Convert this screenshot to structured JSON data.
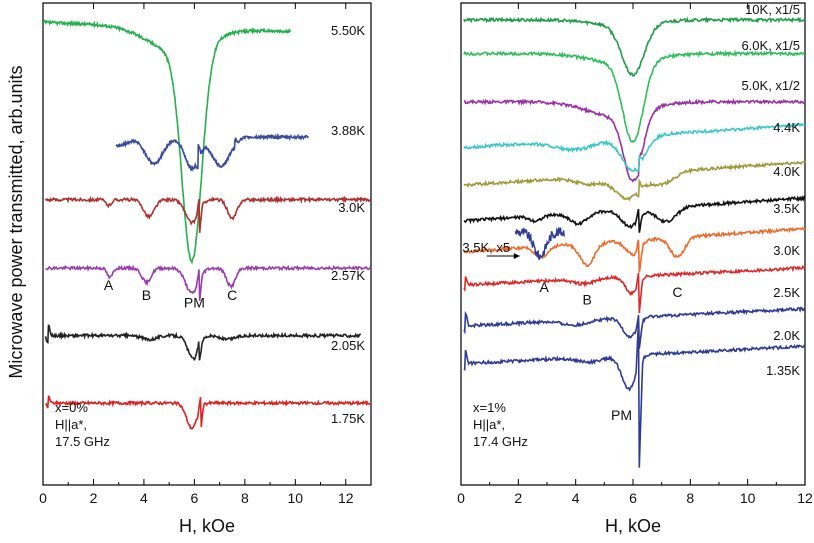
{
  "chart_data": {
    "type": "line",
    "ylabel": "Microwave power transmitted, arb.units",
    "panels": [
      {
        "id": "left",
        "xlabel": "H, kOe",
        "xlim": [
          0,
          13
        ],
        "xticks": [
          0,
          2,
          4,
          6,
          8,
          10,
          12
        ],
        "yaxis_ticks": false,
        "annotation_lines": [
          "x=0%",
          "H||a*,",
          "17.5 GHz"
        ],
        "series": [
          {
            "name": "5.50K",
            "color": "#22b14c",
            "xrange": [
              0.0,
              9.8
            ],
            "baseline": 0.96,
            "slope": -0.002,
            "dips": [
              {
                "x": 5.9,
                "depth": 0.44,
                "width": 0.55
              },
              {
                "x": 5.3,
                "depth": 0.05,
                "width": 1.6
              }
            ]
          },
          {
            "name": "3.88K",
            "color": "#3b4a9e",
            "xrange": [
              2.9,
              10.5
            ],
            "baseline": 0.722,
            "slope": 0.0,
            "dips": [
              {
                "x": 4.4,
                "depth": 0.055,
                "width": 0.5
              },
              {
                "x": 5.9,
                "depth": 0.065,
                "width": 0.4
              },
              {
                "x": 7.05,
                "depth": 0.06,
                "width": 0.5
              },
              {
                "x": 3.0,
                "depth": 0.018,
                "width": 0.5
              }
            ],
            "spikes": [
              {
                "x": 6.15,
                "amp": 0.03
              },
              {
                "x": 7.6,
                "amp": 0.012
              }
            ]
          },
          {
            "name": "3.0K",
            "color": "#b03030",
            "xrange": [
              0.1,
              13.0
            ],
            "baseline": 0.592,
            "slope": 0.0,
            "dips": [
              {
                "x": 2.6,
                "depth": 0.012,
                "width": 0.15
              },
              {
                "x": 4.2,
                "depth": 0.035,
                "width": 0.3
              },
              {
                "x": 5.9,
                "depth": 0.048,
                "width": 0.35
              },
              {
                "x": 7.5,
                "depth": 0.04,
                "width": 0.25
              }
            ],
            "spikes": [
              {
                "x": 6.2,
                "amp": -0.05
              }
            ]
          },
          {
            "name": "2.57K",
            "color": "#9b3bb0",
            "xrange": [
              0.1,
              13.0
            ],
            "baseline": 0.45,
            "slope": 0.0,
            "dips": [
              {
                "x": 2.65,
                "depth": 0.02,
                "width": 0.15
              },
              {
                "x": 4.1,
                "depth": 0.03,
                "width": 0.25
              },
              {
                "x": 5.9,
                "depth": 0.052,
                "width": 0.35
              },
              {
                "x": 7.45,
                "depth": 0.038,
                "width": 0.25
              }
            ],
            "spikes": [
              {
                "x": 6.2,
                "amp": -0.05
              }
            ]
          },
          {
            "name": "2.05K",
            "color": "#222222",
            "xrange": [
              0.1,
              12.6
            ],
            "baseline": 0.31,
            "slope": 0.0,
            "dips": [
              {
                "x": 5.95,
                "depth": 0.048,
                "width": 0.3
              },
              {
                "x": 4.2,
                "depth": 0.008,
                "width": 0.4
              },
              {
                "x": 7.3,
                "depth": 0.008,
                "width": 0.4
              }
            ],
            "spikes": [
              {
                "x": 6.2,
                "amp": -0.03
              },
              {
                "x": 0.2,
                "amp": 0.03
              }
            ]
          },
          {
            "name": "1.75K",
            "color": "#e02020",
            "xrange": [
              0.1,
              13.0
            ],
            "baseline": 0.17,
            "slope": 0.0,
            "dips": [
              {
                "x": 5.9,
                "depth": 0.052,
                "width": 0.3
              }
            ],
            "spikes": [
              {
                "x": 6.25,
                "amp": -0.045
              },
              {
                "x": 0.2,
                "amp": 0.02
              }
            ]
          }
        ],
        "letters": [
          {
            "text": "A",
            "x": 2.6,
            "y": 0.405
          },
          {
            "text": "B",
            "x": 4.1,
            "y": 0.384
          },
          {
            "text": "PM",
            "x": 6.0,
            "y": 0.368
          },
          {
            "text": "C",
            "x": 7.5,
            "y": 0.384
          }
        ]
      },
      {
        "id": "right",
        "xlabel": "H, kOe",
        "xlim": [
          0,
          12
        ],
        "xticks": [
          0,
          2,
          4,
          6,
          8,
          10,
          12
        ],
        "yaxis_ticks": false,
        "annotation_lines": [
          "x=1%",
          "H||a*,",
          "17.4 GHz"
        ],
        "series": [
          {
            "name": "10K, x1/5",
            "color": "#1e9e4a",
            "xrange": [
              0.1,
              12.0
            ],
            "baseline": 0.965,
            "slope": 0.0,
            "dips": [
              {
                "x": 6.0,
                "depth": 0.105,
                "width": 0.55
              },
              {
                "x": 5.6,
                "depth": 0.01,
                "width": 1.5
              }
            ]
          },
          {
            "name": "6.0K, x1/5",
            "color": "#2fbf5a",
            "xrange": [
              0.1,
              12.0
            ],
            "baseline": 0.895,
            "slope": 0.0,
            "dips": [
              {
                "x": 6.0,
                "depth": 0.165,
                "width": 0.5
              },
              {
                "x": 5.6,
                "depth": 0.02,
                "width": 1.5
              }
            ]
          },
          {
            "name": "5.0K, x1/2",
            "color": "#9b30a8",
            "xrange": [
              0.1,
              12.0
            ],
            "baseline": 0.795,
            "slope": 0.0,
            "dips": [
              {
                "x": 6.0,
                "depth": 0.14,
                "width": 0.45
              },
              {
                "x": 5.4,
                "depth": 0.03,
                "width": 1.4
              }
            ],
            "spikes": [
              {
                "x": 6.2,
                "amp": 0.02
              }
            ]
          },
          {
            "name": "4.4K",
            "color": "#3cc8c8",
            "xrange": [
              0.1,
              12.0
            ],
            "baseline": 0.7,
            "slope": 0.004,
            "dips": [
              {
                "x": 6.0,
                "depth": 0.07,
                "width": 0.55
              },
              {
                "x": 4.0,
                "depth": 0.02,
                "width": 1.0
              }
            ],
            "spikes": [
              {
                "x": 6.2,
                "amp": 0.02
              }
            ]
          },
          {
            "name": "4.0K",
            "color": "#a09a3a",
            "xrange": [
              0.1,
              12.0
            ],
            "baseline": 0.622,
            "slope": 0.004,
            "dips": [
              {
                "x": 5.8,
                "depth": 0.05,
                "width": 0.6
              },
              {
                "x": 7.0,
                "depth": 0.025,
                "width": 0.6
              },
              {
                "x": 4.5,
                "depth": 0.015,
                "width": 0.7
              }
            ],
            "spikes": [
              {
                "x": 6.2,
                "amp": 0.02
              }
            ]
          },
          {
            "name": "3.5K",
            "color": "#111111",
            "xrange": [
              0.1,
              12.0
            ],
            "baseline": 0.548,
            "slope": 0.004,
            "dips": [
              {
                "x": 4.1,
                "depth": 0.022,
                "width": 0.4
              },
              {
                "x": 5.9,
                "depth": 0.035,
                "width": 0.4
              },
              {
                "x": 7.15,
                "depth": 0.03,
                "width": 0.5
              },
              {
                "x": 2.6,
                "depth": 0.01,
                "width": 0.3
              }
            ],
            "spikes": [
              {
                "x": 6.2,
                "amp": -0.035
              }
            ]
          },
          {
            "name": "3.0K",
            "color": "#f06a2a",
            "xrange": [
              0.1,
              12.0
            ],
            "baseline": 0.484,
            "slope": 0.004,
            "dips": [
              {
                "x": 2.8,
                "depth": 0.025,
                "width": 0.3
              },
              {
                "x": 4.4,
                "depth": 0.045,
                "width": 0.35
              },
              {
                "x": 6.0,
                "depth": 0.03,
                "width": 0.35
              },
              {
                "x": 7.55,
                "depth": 0.04,
                "width": 0.35
              }
            ],
            "spikes": [
              {
                "x": 6.22,
                "amp": -0.05
              }
            ]
          },
          {
            "name": "2.5K",
            "color": "#e02828",
            "xrange": [
              0.1,
              12.0
            ],
            "baseline": 0.415,
            "slope": 0.003,
            "dips": [
              {
                "x": 5.95,
                "depth": 0.035,
                "width": 0.3
              },
              {
                "x": 4.3,
                "depth": 0.01,
                "width": 0.5
              }
            ],
            "spikes": [
              {
                "x": 6.22,
                "amp": -0.06
              },
              {
                "x": 0.15,
                "amp": 0.015
              }
            ]
          },
          {
            "name": "2.0K",
            "color": "#2e3a96",
            "xrange": [
              0.1,
              12.0
            ],
            "baseline": 0.33,
            "slope": 0.003,
            "dips": [
              {
                "x": 5.9,
                "depth": 0.04,
                "width": 0.35
              },
              {
                "x": 4.0,
                "depth": 0.01,
                "width": 0.6
              }
            ],
            "spikes": [
              {
                "x": 6.22,
                "amp": -0.05
              },
              {
                "x": 0.15,
                "amp": 0.03
              }
            ]
          },
          {
            "name": "1.35K",
            "color": "#2e3a96",
            "xrange": [
              0.1,
              12.0
            ],
            "baseline": 0.252,
            "slope": 0.003,
            "dips": [
              {
                "x": 5.85,
                "depth": 0.07,
                "width": 0.35
              },
              {
                "x": 4.5,
                "depth": 0.01,
                "width": 0.6
              }
            ],
            "spikes": [
              {
                "x": 6.22,
                "amp": -0.21
              },
              {
                "x": 0.15,
                "amp": 0.03
              }
            ]
          }
        ],
        "inset_label": "3.5K, x5",
        "letters": [
          {
            "text": "A",
            "x": 2.9,
            "y": 0.4
          },
          {
            "text": "B",
            "x": 4.4,
            "y": 0.375
          },
          {
            "text": "C",
            "x": 7.55,
            "y": 0.39
          },
          {
            "text": "PM",
            "x": 5.6,
            "y": 0.135
          }
        ]
      }
    ]
  }
}
